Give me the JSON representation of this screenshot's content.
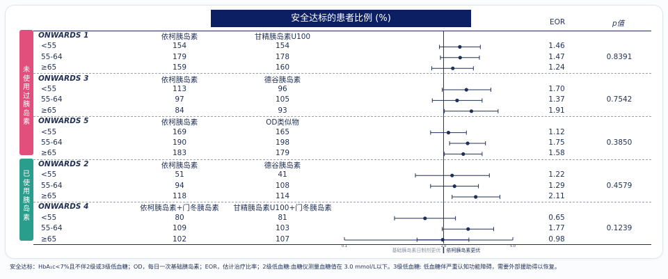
{
  "chart_data": {
    "type": "forest",
    "title": "安全达标的患者比例 (%)",
    "columns": {
      "eor": "EOR",
      "p": "p值"
    },
    "sides": [
      {
        "label": "未使用过胰岛素",
        "color": "#e24f7d"
      },
      {
        "label": "已使用胰岛素",
        "color": "#2a9e8c"
      }
    ],
    "xaxis": {
      "scale": "log",
      "ticks": [
        "0.1",
        "1.0",
        "5.0"
      ],
      "left_note": "基础胰岛素日制剂更优",
      "right_note": "依柯胰岛素更优",
      "null_value": 1.0
    },
    "groups": [
      {
        "trial": "ONWARDS 1",
        "arm1": "依柯胰岛素",
        "arm2": "甘精胰岛素U100",
        "p": "0.8391",
        "rows": [
          {
            "label": "<55",
            "n1": "154",
            "n2": "154",
            "eor": "1.46",
            "lo": 0.91,
            "hi": 2.35
          },
          {
            "label": "55-64",
            "n1": "179",
            "n2": "178",
            "eor": "1.47",
            "lo": 0.93,
            "hi": 2.3
          },
          {
            "label": "≥65",
            "n1": "159",
            "n2": "160",
            "eor": "1.24",
            "lo": 0.76,
            "hi": 2.0
          }
        ]
      },
      {
        "trial": "ONWARDS 3",
        "arm1": "依柯胰岛素",
        "arm2": "德谷胰岛素",
        "p": "0.7542",
        "rows": [
          {
            "label": "<55",
            "n1": "113",
            "n2": "96",
            "eor": "1.70",
            "lo": 0.97,
            "hi": 3.0
          },
          {
            "label": "55-64",
            "n1": "97",
            "n2": "105",
            "eor": "1.37",
            "lo": 0.77,
            "hi": 2.45
          },
          {
            "label": "≥65",
            "n1": "84",
            "n2": "93",
            "eor": "1.91",
            "lo": 1.02,
            "hi": 3.55
          }
        ]
      },
      {
        "trial": "ONWARDS 5",
        "arm1": "依柯胰岛素",
        "arm2": "OD类似物",
        "p": "0.3850",
        "rows": [
          {
            "label": "<55",
            "n1": "169",
            "n2": "165",
            "eor": "1.12",
            "lo": 0.74,
            "hi": 1.7
          },
          {
            "label": "55-64",
            "n1": "190",
            "n2": "198",
            "eor": "1.75",
            "lo": 1.15,
            "hi": 2.65
          },
          {
            "label": "≥65",
            "n1": "183",
            "n2": "179",
            "eor": "1.58",
            "lo": 1.02,
            "hi": 2.45
          }
        ]
      },
      {
        "trial": "ONWARDS 2",
        "arm1": "依柯胰岛素",
        "arm2": "德谷胰岛素",
        "p": "0.4579",
        "rows": [
          {
            "label": "<55",
            "n1": "51",
            "n2": "41",
            "eor": "1.22",
            "lo": 0.52,
            "hi": 2.9
          },
          {
            "label": "55-64",
            "n1": "94",
            "n2": "108",
            "eor": "1.29",
            "lo": 0.74,
            "hi": 2.25
          },
          {
            "label": "≥65",
            "n1": "118",
            "n2": "114",
            "eor": "2.11",
            "lo": 1.22,
            "hi": 3.7
          }
        ]
      },
      {
        "trial": "ONWARDS 4",
        "arm1": "依柯胰岛素+门冬胰岛素",
        "arm2": "甘精胰岛素U100+门冬胰岛素",
        "p": "0.1239",
        "rows": [
          {
            "label": "<55",
            "n1": "80",
            "n2": "81",
            "eor": "0.65",
            "lo": 0.32,
            "hi": 1.32
          },
          {
            "label": "55-64",
            "n1": "109",
            "n2": "103",
            "eor": "1.77",
            "lo": 0.97,
            "hi": 3.2
          },
          {
            "label": "≥65",
            "n1": "102",
            "n2": "107",
            "eor": "0.98",
            "lo": 0.54,
            "hi": 1.8
          }
        ]
      }
    ]
  },
  "footnote": "安全达标：HbA₁c<7%且不伴2级或3级低血糖；OD，每日一次基础胰岛素；EOR，估计治疗比率；2级低血糖:血糖仪测量血糖值在 3.0 mmol/L以下。3级低血糖: 低血糖伴严重认知功能障碍，需要外部援助得以恢复。"
}
